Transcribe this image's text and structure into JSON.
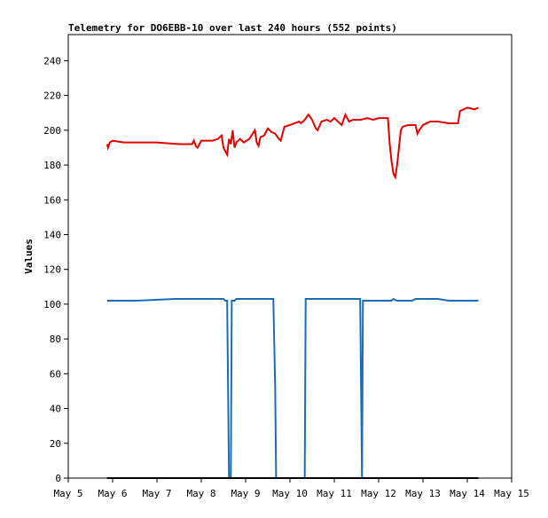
{
  "chart_data": {
    "type": "line",
    "title": "Telemetry for DO6EBB-10 over last 240 hours (552 points)",
    "xlabel": "",
    "ylabel": "Values",
    "x_tick_labels": [
      "May 5",
      "May 6",
      "May 7",
      "May 8",
      "May 9",
      "May 10",
      "May 11",
      "May 12",
      "May 13",
      "May 14",
      "May 15"
    ],
    "x_range_days": [
      "May 5",
      "May 15"
    ],
    "ylim": [
      0,
      255
    ],
    "y_ticks": [
      0,
      20,
      40,
      60,
      80,
      100,
      120,
      140,
      160,
      180,
      200,
      220,
      240
    ],
    "grid": false,
    "legend": "none",
    "series": [
      {
        "color": "#e00000",
        "points": [
          [
            "May 5 21:00",
            192
          ],
          [
            "May 5 21:30",
            190
          ],
          [
            "May 5 22:30",
            193
          ],
          [
            "May 6 00:00",
            194
          ],
          [
            "May 6 06:00",
            193
          ],
          [
            "May 7 00:00",
            193
          ],
          [
            "May 7 12:00",
            192
          ],
          [
            "May 7 19:00",
            192
          ],
          [
            "May 7 20:00",
            194
          ],
          [
            "May 7 21:00",
            191
          ],
          [
            "May 7 22:00",
            190
          ],
          [
            "May 7 23:00",
            192
          ],
          [
            "May 8 00:00",
            194
          ],
          [
            "May 8 06:00",
            194
          ],
          [
            "May 8 09:00",
            195
          ],
          [
            "May 8 11:00",
            197
          ],
          [
            "May 8 12:00",
            190
          ],
          [
            "May 8 13:00",
            188
          ],
          [
            "May 8 14:00",
            186
          ],
          [
            "May 8 15:00",
            195
          ],
          [
            "May 8 16:00",
            192
          ],
          [
            "May 8 17:00",
            200
          ],
          [
            "May 8 18:00",
            190
          ],
          [
            "May 8 19:00",
            193
          ],
          [
            "May 8 21:00",
            195
          ],
          [
            "May 8 23:00",
            193
          ],
          [
            "May 9 02:00",
            195
          ],
          [
            "May 9 05:00",
            200
          ],
          [
            "May 9 06:00",
            193
          ],
          [
            "May 9 07:00",
            191
          ],
          [
            "May 9 08:00",
            196
          ],
          [
            "May 9 10:00",
            197
          ],
          [
            "May 9 12:00",
            201
          ],
          [
            "May 9 14:00",
            199
          ],
          [
            "May 9 16:00",
            198
          ],
          [
            "May 9 18:00",
            195
          ],
          [
            "May 9 19:00",
            194
          ],
          [
            "May 9 21:00",
            202
          ],
          [
            "May 10 00:00",
            203
          ],
          [
            "May 10 05:00",
            205
          ],
          [
            "May 10 06:00",
            204
          ],
          [
            "May 10 08:00",
            206
          ],
          [
            "May 10 10:00",
            209
          ],
          [
            "May 10 12:00",
            206
          ],
          [
            "May 10 14:00",
            201
          ],
          [
            "May 10 15:00",
            200
          ],
          [
            "May 10 17:00",
            205
          ],
          [
            "May 10 20:00",
            206
          ],
          [
            "May 10 22:00",
            205
          ],
          [
            "May 11 00:00",
            207
          ],
          [
            "May 11 04:00",
            203
          ],
          [
            "May 11 06:00",
            209
          ],
          [
            "May 11 08:00",
            205
          ],
          [
            "May 11 10:00",
            206
          ],
          [
            "May 11 14:00",
            206
          ],
          [
            "May 11 18:00",
            207
          ],
          [
            "May 11 21:00",
            206
          ],
          [
            "May 12 00:00",
            207
          ],
          [
            "May 12 05:00",
            207
          ],
          [
            "May 12 06:00",
            192
          ],
          [
            "May 12 07:00",
            182
          ],
          [
            "May 12 08:00",
            175
          ],
          [
            "May 12 09:00",
            173
          ],
          [
            "May 12 10:00",
            180
          ],
          [
            "May 12 11:00",
            190
          ],
          [
            "May 12 12:00",
            200
          ],
          [
            "May 12 13:00",
            202
          ],
          [
            "May 12 16:00",
            203
          ],
          [
            "May 12 20:00",
            203
          ],
          [
            "May 12 21:00",
            198
          ],
          [
            "May 12 22:00",
            200
          ],
          [
            "May 13 00:00",
            203
          ],
          [
            "May 13 04:00",
            205
          ],
          [
            "May 13 08:00",
            205
          ],
          [
            "May 13 14:00",
            204
          ],
          [
            "May 13 19:00",
            204
          ],
          [
            "May 13 20:00",
            211
          ],
          [
            "May 13 22:00",
            212
          ],
          [
            "May 14 00:00",
            213
          ],
          [
            "May 14 04:00",
            212
          ],
          [
            "May 14 06:00",
            213
          ]
        ]
      },
      {
        "color": "#1a6db3",
        "points": [
          [
            "May 5 21:00",
            102
          ],
          [
            "May 6 12:00",
            102
          ],
          [
            "May 6 13:00",
            102
          ],
          [
            "May 7 10:00",
            103
          ],
          [
            "May 8 12:00",
            103
          ],
          [
            "May 8 13:00",
            102
          ],
          [
            "May 8 14:00",
            102
          ],
          [
            "May 8 14:30",
            52
          ],
          [
            "May 8 15:00",
            0
          ],
          [
            "May 8 16:00",
            0
          ],
          [
            "May 8 16:30",
            102
          ],
          [
            "May 8 18:00",
            102
          ],
          [
            "May 8 19:00",
            103
          ],
          [
            "May 9 15:00",
            103
          ],
          [
            "May 9 16:00",
            52
          ],
          [
            "May 9 16:30",
            0
          ],
          [
            "May 10 08:00",
            0
          ],
          [
            "May 10 08:30",
            103
          ],
          [
            "May 11 14:00",
            103
          ],
          [
            "May 11 14:30",
            52
          ],
          [
            "May 11 15:00",
            0
          ],
          [
            "May 11 15:30",
            102
          ],
          [
            "May 12 06:00",
            102
          ],
          [
            "May 12 07:00",
            102
          ],
          [
            "May 12 08:00",
            103
          ],
          [
            "May 12 10:00",
            102
          ],
          [
            "May 12 18:00",
            102
          ],
          [
            "May 12 20:00",
            103
          ],
          [
            "May 13 08:00",
            103
          ],
          [
            "May 13 14:00",
            102
          ],
          [
            "May 14 06:00",
            102
          ]
        ]
      },
      {
        "color": "#000000",
        "points": [
          [
            "May 5 21:00",
            0
          ],
          [
            "May 14 06:00",
            0
          ]
        ]
      }
    ]
  }
}
